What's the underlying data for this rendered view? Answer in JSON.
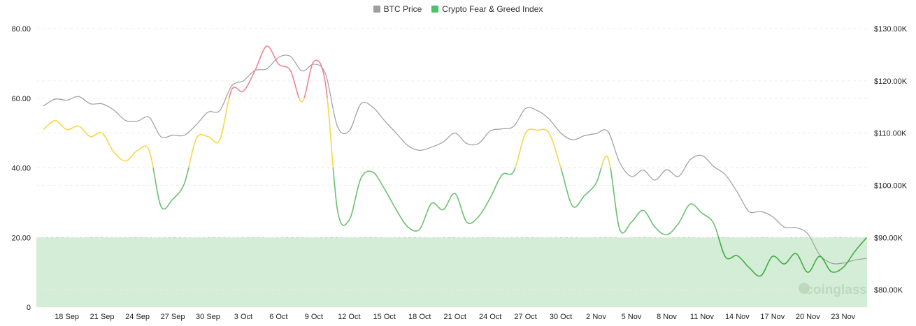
{
  "chart_data": {
    "type": "line",
    "legend": [
      {
        "name": "BTC Price",
        "color": "#9e9e9e"
      },
      {
        "name": "Crypto Fear & Greed Index",
        "color": "#4cc467"
      }
    ],
    "legend_position": "top",
    "x_tick_labels": [
      "18 Sep",
      "21 Sep",
      "24 Sep",
      "27 Sep",
      "30 Sep",
      "3 Oct",
      "6 Oct",
      "9 Oct",
      "12 Oct",
      "15 Oct",
      "18 Oct",
      "21 Oct",
      "24 Oct",
      "27 Oct",
      "30 Oct",
      "2 Nov",
      "5 Nov",
      "8 Nov",
      "11 Nov",
      "14 Nov",
      "17 Nov",
      "20 Nov",
      "23 Nov"
    ],
    "x": [
      "16 Sep",
      "17 Sep",
      "18 Sep",
      "19 Sep",
      "20 Sep",
      "21 Sep",
      "22 Sep",
      "23 Sep",
      "24 Sep",
      "25 Sep",
      "26 Sep",
      "27 Sep",
      "28 Sep",
      "29 Sep",
      "30 Sep",
      "1 Oct",
      "2 Oct",
      "3 Oct",
      "4 Oct",
      "5 Oct",
      "6 Oct",
      "7 Oct",
      "8 Oct",
      "9 Oct",
      "10 Oct",
      "11 Oct",
      "12 Oct",
      "13 Oct",
      "14 Oct",
      "15 Oct",
      "16 Oct",
      "17 Oct",
      "18 Oct",
      "19 Oct",
      "20 Oct",
      "21 Oct",
      "22 Oct",
      "23 Oct",
      "24 Oct",
      "25 Oct",
      "26 Oct",
      "27 Oct",
      "28 Oct",
      "29 Oct",
      "30 Oct",
      "31 Oct",
      "1 Nov",
      "2 Nov",
      "3 Nov",
      "4 Nov",
      "5 Nov",
      "6 Nov",
      "7 Nov",
      "8 Nov",
      "9 Nov",
      "10 Nov",
      "11 Nov",
      "12 Nov",
      "13 Nov",
      "14 Nov",
      "15 Nov",
      "16 Nov",
      "17 Nov",
      "18 Nov",
      "19 Nov",
      "20 Nov",
      "21 Nov",
      "22 Nov",
      "23 Nov",
      "24 Nov",
      "25 Nov"
    ],
    "series": [
      {
        "name": "Crypto Fear & Greed Index",
        "axis": "left",
        "values": [
          51,
          53.6,
          51,
          52,
          49,
          50,
          44.5,
          42,
          45,
          45,
          29,
          31,
          35.6,
          48.4,
          49,
          48,
          62.4,
          62,
          68,
          75,
          69.8,
          68,
          59,
          70.6,
          64,
          28,
          25,
          37,
          38.8,
          34,
          28,
          23,
          22.4,
          29.8,
          28,
          32.6,
          24.4,
          26,
          31.4,
          38,
          39,
          50,
          50.8,
          50,
          40,
          29,
          32,
          35.6,
          43,
          22.4,
          24.4,
          27.8,
          23,
          20.8,
          24,
          29.6,
          27,
          24,
          14.4,
          14.8,
          11.4,
          9,
          14.6,
          12.4,
          15.4,
          10,
          14.6,
          10.2,
          11.4,
          16,
          20
        ]
      },
      {
        "name": "BTC Price",
        "axis": "right",
        "unit": "K USD",
        "values": [
          115.2,
          116.5,
          116.3,
          117,
          115.6,
          115.6,
          114.4,
          112.4,
          112.3,
          113,
          109.3,
          109.6,
          109.6,
          111.6,
          114,
          114.3,
          119,
          120,
          122,
          122.3,
          124.5,
          124.7,
          121.9,
          123.2,
          121.3,
          111.3,
          110.4,
          115.6,
          115,
          112.4,
          110,
          107.6,
          106.7,
          107.3,
          108.3,
          110,
          108,
          108,
          110.4,
          110.8,
          111.3,
          114.7,
          114.3,
          112.7,
          110,
          108.7,
          109.5,
          109.9,
          110.3,
          104.4,
          101.7,
          102.9,
          101,
          103,
          101.7,
          104.9,
          105.7,
          103.6,
          102,
          98.7,
          95,
          95,
          94,
          92,
          91.9,
          90.7,
          86.7,
          85.1,
          85.1,
          85.7,
          86
        ]
      }
    ],
    "left_axis": {
      "ylim": [
        0,
        80
      ],
      "tick_labels": [
        "0",
        "20.00",
        "40.00",
        "60.00",
        "80.00"
      ],
      "ticks": [
        0,
        20,
        40,
        60,
        80
      ]
    },
    "right_axis": {
      "ylim": [
        76.67,
        130
      ],
      "tick_labels": [
        "$80.00K",
        "$90.00K",
        "$100.00K",
        "$110.00K",
        "$120.00K",
        "$130.00K"
      ],
      "ticks": [
        80,
        90,
        100,
        110,
        120,
        130
      ]
    },
    "shaded_band": {
      "from": 0,
      "to": 20,
      "color": "#d4edd6"
    },
    "fgi_colors": {
      "extreme_fear": "#3fae44",
      "fear": "#6cc070",
      "neutral": "#f7d64a",
      "greed": "#ee8590"
    },
    "grid": true,
    "watermark": "coinglass"
  }
}
